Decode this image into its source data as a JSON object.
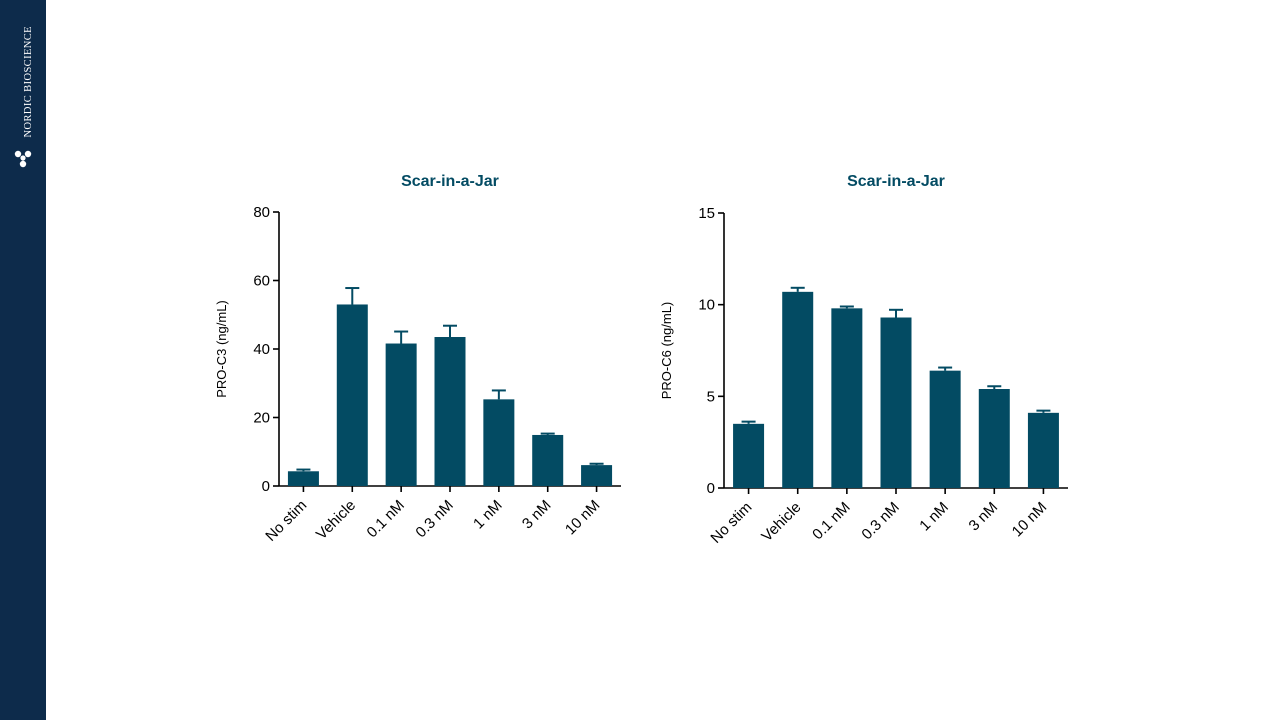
{
  "brand": {
    "name": "NORDIC BIOSCIENCE",
    "logo_icon": "molecule-cluster-icon"
  },
  "colors": {
    "sidebar": "#0d2b4b",
    "bar": "#034b63",
    "title": "#034b63",
    "axis": "#000000"
  },
  "chart_data": [
    {
      "type": "bar",
      "title": "Scar-in-a-Jar",
      "xlabel": "",
      "ylabel": "PRO-C3 (ng/mL)",
      "ylim": [
        0,
        80
      ],
      "yticks": [
        0,
        20,
        40,
        60,
        80
      ],
      "categories": [
        "No stim",
        "Vehicle",
        "0.1 nM",
        "0.3 nM",
        "1 nM",
        "3 nM",
        "10 nM"
      ],
      "values": [
        4.3,
        53,
        41.6,
        43.5,
        25.3,
        14.9,
        6.1
      ],
      "errors": [
        0.5,
        4.8,
        3.5,
        3.3,
        2.6,
        0.4,
        0.4
      ],
      "grid": false,
      "legend": "none"
    },
    {
      "type": "bar",
      "title": "Scar-in-a-Jar",
      "xlabel": "",
      "ylabel": "PRO-C6 (ng/mL)",
      "ylim": [
        0,
        15
      ],
      "yticks": [
        0,
        5,
        10,
        15
      ],
      "categories": [
        "No stim",
        "Vehicle",
        "0.1 nM",
        "0.3 nM",
        "1 nM",
        "3 nM",
        "10 nM"
      ],
      "values": [
        3.5,
        10.7,
        9.8,
        9.3,
        6.4,
        5.4,
        4.1
      ],
      "errors": [
        0.12,
        0.22,
        0.1,
        0.42,
        0.17,
        0.15,
        0.12
      ],
      "grid": false,
      "legend": "none"
    }
  ]
}
